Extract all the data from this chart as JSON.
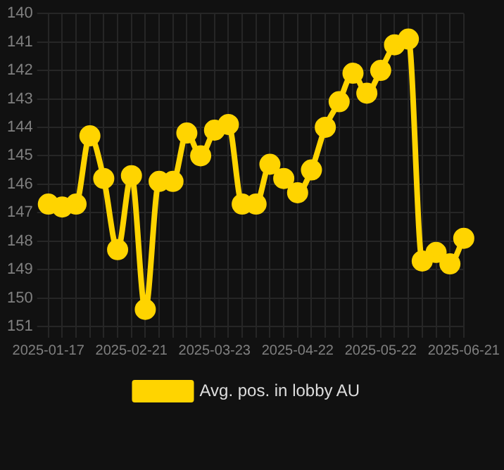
{
  "chart_data": {
    "type": "line",
    "categories": [
      "2025-01-17",
      null,
      null,
      null,
      null,
      null,
      "2025-02-21",
      null,
      null,
      null,
      null,
      null,
      "2025-03-23",
      null,
      null,
      null,
      null,
      null,
      "2025-04-22",
      null,
      null,
      null,
      null,
      null,
      "2025-05-22",
      null,
      null,
      null,
      null,
      null,
      "2025-06-21"
    ],
    "series": [
      {
        "name": "Avg. pos. in lobby AU",
        "color": "#ffd400",
        "values": [
          146.7,
          146.8,
          146.7,
          144.3,
          145.8,
          148.3,
          145.7,
          150.4,
          145.9,
          145.9,
          144.2,
          145.0,
          144.1,
          143.9,
          146.7,
          146.7,
          145.3,
          145.8,
          146.3,
          145.5,
          144.0,
          143.1,
          142.1,
          142.8,
          142.0,
          141.1,
          140.9,
          148.7,
          148.4,
          148.8,
          147.9
        ]
      }
    ],
    "ylim": [
      151,
      140
    ],
    "yticks": [
      140,
      141,
      142,
      143,
      144,
      145,
      146,
      147,
      148,
      149,
      150,
      151
    ],
    "grid": true,
    "legend": "bottom",
    "marker": "circle",
    "line_style": "solid"
  }
}
